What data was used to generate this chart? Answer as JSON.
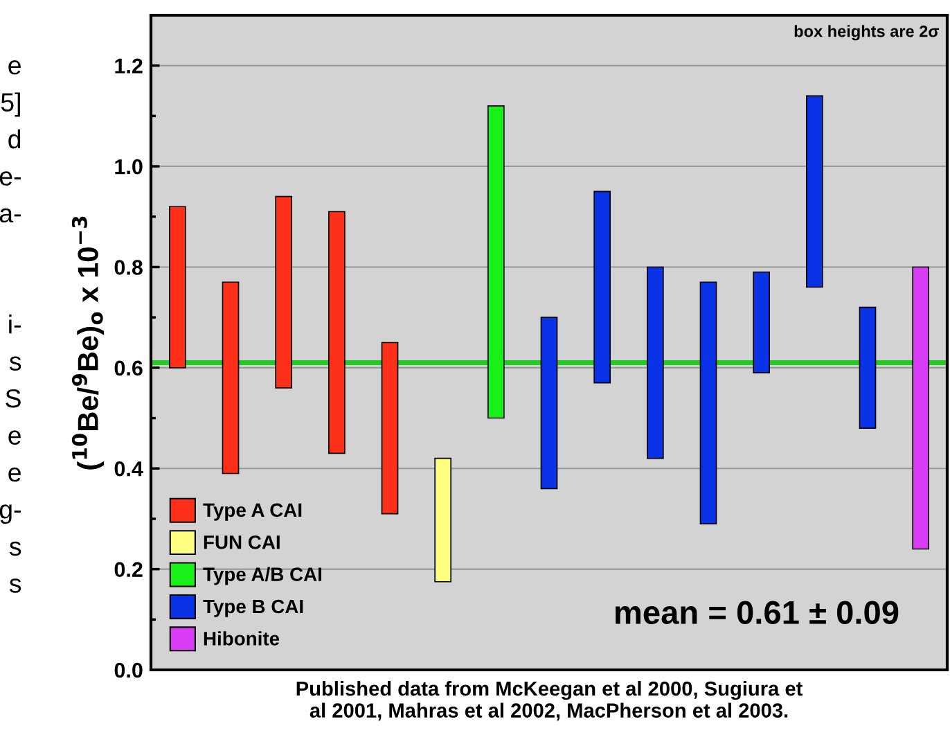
{
  "chart_data": {
    "type": "bar",
    "categories": [
      null,
      null,
      null,
      null,
      null,
      null,
      null,
      null,
      null,
      null,
      null,
      null,
      null,
      null,
      null
    ],
    "series": [
      {
        "name": "Type A CAI",
        "color": "#ff3019",
        "values": [
          0.32,
          0.38,
          0.38,
          0.48,
          0.34,
          null,
          null,
          null,
          null,
          null,
          null,
          null,
          null,
          null,
          null
        ],
        "base": [
          0.6,
          0.39,
          0.56,
          0.43,
          0.31,
          null,
          null,
          null,
          null,
          null,
          null,
          null,
          null,
          null,
          null
        ]
      },
      {
        "name": "FUN CAI",
        "color": "#ffff80",
        "values": [
          null,
          null,
          null,
          null,
          null,
          0.245,
          null,
          null,
          null,
          null,
          null,
          null,
          null,
          null,
          null
        ],
        "base": [
          null,
          null,
          null,
          null,
          null,
          0.175,
          null,
          null,
          null,
          null,
          null,
          null,
          null,
          null,
          null
        ]
      },
      {
        "name": "Type A/B CAI",
        "color": "#19f019",
        "values": [
          null,
          null,
          null,
          null,
          null,
          null,
          0.62,
          null,
          null,
          null,
          null,
          null,
          null,
          null,
          null
        ],
        "base": [
          null,
          null,
          null,
          null,
          null,
          null,
          0.5,
          null,
          null,
          null,
          null,
          null,
          null,
          null,
          null
        ]
      },
      {
        "name": "Type B CAI",
        "color": "#0a32e6",
        "values": [
          null,
          null,
          null,
          null,
          null,
          null,
          null,
          0.34,
          0.38,
          0.38,
          0.48,
          0.2,
          0.38,
          0.24,
          null
        ],
        "base": [
          null,
          null,
          null,
          null,
          null,
          null,
          null,
          0.36,
          0.57,
          0.42,
          0.29,
          0.59,
          0.76,
          0.48,
          null
        ]
      },
      {
        "name": "Hibonite",
        "color": "#d93cf5",
        "values": [
          null,
          null,
          null,
          null,
          null,
          null,
          null,
          null,
          null,
          null,
          null,
          null,
          null,
          null,
          0.56
        ],
        "base": [
          null,
          null,
          null,
          null,
          null,
          null,
          null,
          null,
          null,
          null,
          null,
          null,
          null,
          null,
          0.24
        ]
      }
    ],
    "ylim": [
      0,
      1.3
    ],
    "yticks": [
      {
        "value": 0,
        "label": "0.0"
      },
      {
        "value": 0.1,
        "label": null
      },
      {
        "value": 0.2,
        "label": "0.2"
      },
      {
        "value": 0.3,
        "label": null
      },
      {
        "value": 0.4,
        "label": "0.4"
      },
      {
        "value": 0.5,
        "label": null
      },
      {
        "value": 0.6,
        "label": "0.6"
      },
      {
        "value": 0.7,
        "label": null
      },
      {
        "value": 0.8,
        "label": "0.8"
      },
      {
        "value": 0.9,
        "label": null
      },
      {
        "value": 1.0,
        "label": "1.0"
      },
      {
        "value": 1.1,
        "label": null
      },
      {
        "value": 1.2,
        "label": "1.2"
      }
    ],
    "ylabel": "($^{10}$Be/$^{9}$Be)$_{o}$ x 10$^{−3}$",
    "xlabel": "Published data from McKeegan et al 2000, Sugiura et\nal 2001, Mahras et al 2002, MacPherson et al 2003.",
    "ref_lines": [
      {
        "axis": "y",
        "value": 0.61,
        "color": "#22cc22"
      }
    ],
    "annotations": [
      "box heights are 2σ",
      "mean = 0.61 ± 0.09",
      "e\n5]\nd\ne-\na-\n\n\ni-\ns\nS\ne\ne\ng-\ns\ns"
    ],
    "grid": "y",
    "legend": "bottom left"
  }
}
